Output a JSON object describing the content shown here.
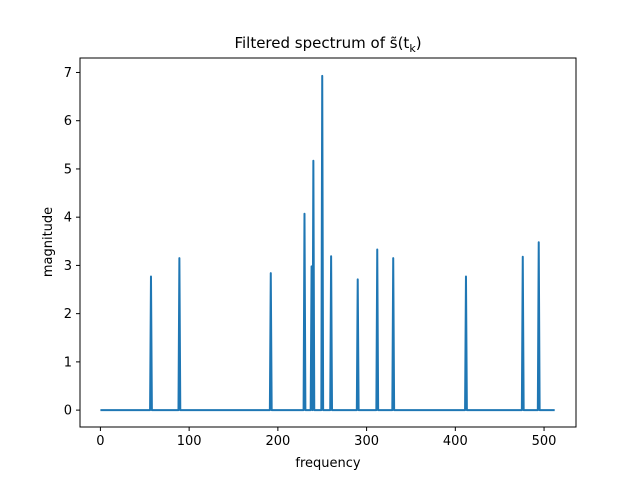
{
  "chart_data": {
    "type": "line",
    "title": "Filtered spectrum of s̃(t",
    "title_subscript": "k",
    "title_close": ")",
    "xlabel": "frequency",
    "ylabel": "magnitude",
    "xlim": [
      -23,
      536
    ],
    "ylim": [
      -0.35,
      7.3
    ],
    "xticks": [
      0,
      100,
      200,
      300,
      400,
      500
    ],
    "yticks": [
      0,
      1,
      2,
      3,
      4,
      5,
      6,
      7
    ],
    "grid": false,
    "line_color": "#1f77b4",
    "x_range": [
      0,
      512
    ],
    "series": [
      {
        "peaks": [
          {
            "x": 57,
            "y": 2.77
          },
          {
            "x": 89,
            "y": 3.15
          },
          {
            "x": 192,
            "y": 2.84
          },
          {
            "x": 230,
            "y": 4.07
          },
          {
            "x": 238,
            "y": 2.98
          },
          {
            "x": 240,
            "y": 5.17
          },
          {
            "x": 250,
            "y": 6.93
          },
          {
            "x": 260,
            "y": 3.19
          },
          {
            "x": 290,
            "y": 2.71
          },
          {
            "x": 312,
            "y": 3.33
          },
          {
            "x": 330,
            "y": 3.15
          },
          {
            "x": 412,
            "y": 2.77
          },
          {
            "x": 476,
            "y": 3.18
          },
          {
            "x": 494,
            "y": 3.48
          }
        ]
      }
    ]
  }
}
